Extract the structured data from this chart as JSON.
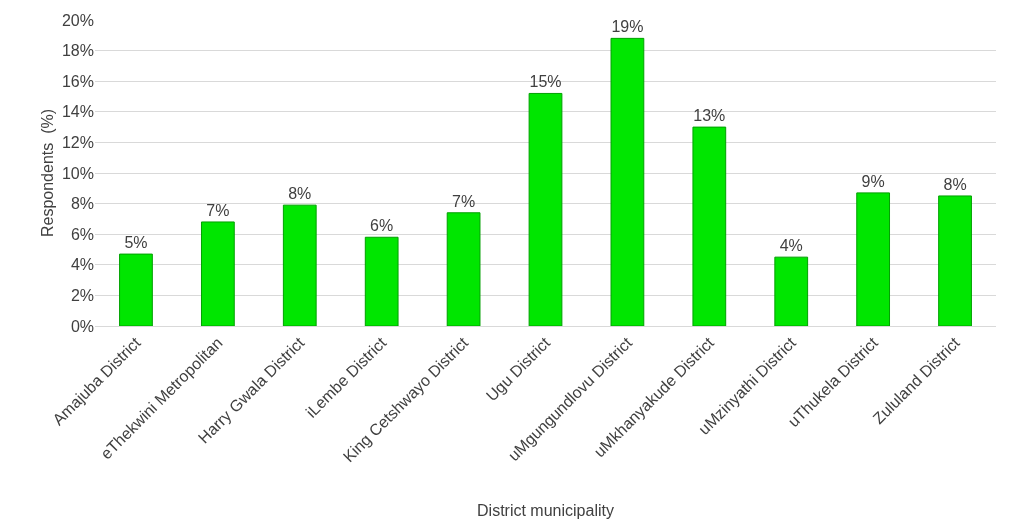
{
  "chart_data": {
    "type": "bar",
    "xlabel": "District municipality",
    "ylabel": "Respondents  (%)",
    "categories": [
      "Amajuba District",
      "eThekwini Metropolitan",
      "Harry Gwala District",
      "iLembe District",
      "King Cetshwayo District",
      "Ugu District",
      "uMgungundlovu District",
      "uMkhanyakude District",
      "uMzinyathi District",
      "uThukela District",
      "Zululand District"
    ],
    "values": [
      4.7,
      6.8,
      7.9,
      5.8,
      7.4,
      15.2,
      18.8,
      13.0,
      4.5,
      8.7,
      8.5
    ],
    "value_labels": [
      "5%",
      "7%",
      "8%",
      "6%",
      "7%",
      "15%",
      "19%",
      "13%",
      "4%",
      "9%",
      "8%"
    ],
    "color": "#00e600",
    "ylim": [
      0,
      20
    ],
    "yticks": [
      {
        "value": 0,
        "label": "0%"
      },
      {
        "value": 2,
        "label": "2%"
      },
      {
        "value": 4,
        "label": "4%"
      },
      {
        "value": 6,
        "label": "6%"
      },
      {
        "value": 8,
        "label": "8%"
      },
      {
        "value": 10,
        "label": "10%"
      },
      {
        "value": 12,
        "label": "12%"
      },
      {
        "value": 14,
        "label": "14%"
      },
      {
        "value": 16,
        "label": "16%"
      },
      {
        "value": 18,
        "label": "18%"
      },
      {
        "value": 20,
        "label": "20%"
      }
    ],
    "grid": "y",
    "legend": false
  }
}
